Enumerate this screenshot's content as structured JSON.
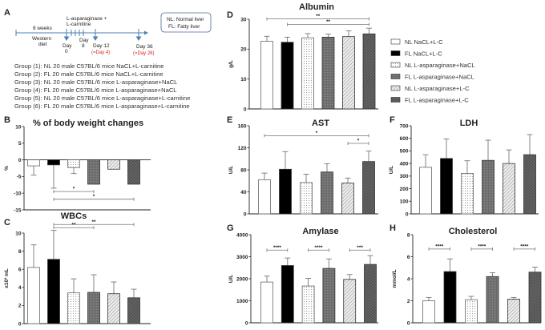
{
  "panel_a": {
    "label": "A",
    "treatment": [
      "L-asparaginase +",
      "L-carnitine"
    ],
    "diet_duration": "8 weeks",
    "diet": [
      "Western",
      "diet"
    ],
    "day0": [
      "Day",
      "0"
    ],
    "day8": [
      "Day",
      "8"
    ],
    "day12": "Day 12",
    "day12_note": "(=Day 4)",
    "day36": "Day 36",
    "day36_note": "(=Day 28)",
    "abbrev": [
      "NL: Normal liver",
      "FL: Fatty liver"
    ],
    "groups": [
      "Group (1): NL 20 male C57BL/6 mice NaCL+L-carnitine",
      "Group (2): FL 20 male C57BL/6 mice NaCL+L-carnitine",
      "Group (3): NL 20 male C57BL/6 mice L-asparaginase+NaCL",
      "Group (4): FL 20 male C57BL/6 mice L-asparaginase+NaCL",
      "Group (5): NL 20 male C57BL/6 mice L-asparaginase+L-carnitine",
      "Group (6): FL 20 male C57BL/6 mice L-asparaginase+L-carnitine"
    ]
  },
  "legend": [
    "NL NaCL+L-C",
    "FL NaCL+L-C",
    "NL L-asparaginase+NaCL",
    "FL L-asparaginase+NaCL",
    "NL L-asparaginase+L-C",
    "FL L-asparaginase+L-C"
  ],
  "chart_data": [
    {
      "id": "B",
      "label": "B",
      "type": "bar",
      "title": "% of  body weight changes",
      "ylabel": "%",
      "ylim": [
        -15,
        10
      ],
      "ticks": [
        10,
        5,
        0,
        -5,
        -10,
        -15
      ],
      "values": [
        -1.8,
        -1.5,
        -2.3,
        -7.3,
        -2.8,
        -7.3
      ],
      "errors": [
        2.8,
        7.0,
        1.8,
        0,
        0,
        0
      ],
      "significance": [
        {
          "from": 2,
          "to": 4,
          "y": -9.5,
          "label": "*"
        },
        {
          "from": 2,
          "to": 6,
          "y": -11.8,
          "label": "*"
        }
      ]
    },
    {
      "id": "C",
      "label": "C",
      "type": "bar",
      "title": "WBCs",
      "ylabel": "x10³ mL",
      "ylim": [
        0,
        10
      ],
      "ticks": [
        0,
        2,
        4,
        6,
        8,
        10
      ],
      "values": [
        6.2,
        7.1,
        3.4,
        3.45,
        3.3,
        2.85
      ],
      "errors": [
        2.5,
        3.2,
        1.55,
        1.95,
        1.3,
        0.95
      ],
      "significance": [
        {
          "from": 2,
          "to": 4,
          "y": 10.6,
          "label": "**"
        },
        {
          "from": 2,
          "to": 6,
          "y": 10.95,
          "label": "**"
        }
      ]
    },
    {
      "id": "D",
      "label": "D",
      "type": "bar",
      "title": "Albumin",
      "ylabel": "g/L",
      "ylim": [
        0,
        30
      ],
      "ticks": [
        0,
        10,
        20,
        30
      ],
      "values": [
        22.6,
        22.3,
        23.8,
        24.0,
        24.2,
        25.1
      ],
      "errors": [
        1.7,
        1.7,
        1.4,
        1.0,
        1.9,
        1.9
      ],
      "significance": [
        {
          "from": 1,
          "to": 6,
          "y": 30.1,
          "label": "**"
        },
        {
          "from": 2,
          "to": 6,
          "y": 28.3,
          "label": "**"
        }
      ]
    },
    {
      "id": "E",
      "label": "E",
      "type": "bar",
      "title": "AST",
      "ylabel": "U/L",
      "ylim": [
        0,
        160
      ],
      "ticks": [
        0,
        40,
        80,
        120,
        160
      ],
      "values": [
        62,
        81,
        57,
        76,
        56,
        95
      ],
      "errors": [
        12,
        32,
        15,
        15,
        9,
        19
      ],
      "significance": [
        {
          "from": 1,
          "to": 6,
          "y": 142,
          "label": "*"
        },
        {
          "from": 5,
          "to": 6,
          "y": 128,
          "label": "*"
        }
      ]
    },
    {
      "id": "F",
      "label": "F",
      "type": "bar",
      "title": "LDH",
      "ylabel": "U/L",
      "ylim": [
        0,
        700
      ],
      "ticks": [
        0,
        100,
        200,
        300,
        400,
        500,
        600,
        700
      ],
      "values": [
        370,
        440,
        322,
        425,
        400,
        470
      ],
      "errors": [
        100,
        155,
        100,
        160,
        108,
        160
      ],
      "significance": []
    },
    {
      "id": "G",
      "label": "G",
      "type": "bar",
      "title": "Amylase",
      "ylabel": "U/L",
      "ylim": [
        0,
        4000
      ],
      "ticks": [
        0,
        1000,
        2000,
        3000,
        4000
      ],
      "values": [
        1850,
        2600,
        1670,
        2470,
        1970,
        2650
      ],
      "errors": [
        270,
        340,
        350,
        430,
        220,
        400
      ],
      "significance": [
        {
          "from": 1,
          "to": 2,
          "y": 3300,
          "label": "****"
        },
        {
          "from": 3,
          "to": 4,
          "y": 3300,
          "label": "****"
        },
        {
          "from": 5,
          "to": 6,
          "y": 3300,
          "label": "***"
        }
      ]
    },
    {
      "id": "H",
      "label": "H",
      "type": "bar",
      "title": "Cholesterol",
      "ylabel": "mmol/L",
      "ylim": [
        0,
        8
      ],
      "ticks": [
        0,
        2,
        4,
        6,
        8
      ],
      "values": [
        2.0,
        4.65,
        2.1,
        4.2,
        2.15,
        4.6
      ],
      "errors": [
        0.3,
        1.15,
        0.3,
        0.35,
        0.15,
        0.45
      ],
      "significance": [
        {
          "from": 1,
          "to": 2,
          "y": 6.7,
          "label": "****"
        },
        {
          "from": 3,
          "to": 4,
          "y": 6.7,
          "label": "****"
        },
        {
          "from": 5,
          "to": 6,
          "y": 6.7,
          "label": "****"
        }
      ]
    }
  ],
  "colors": {
    "axis": "#222",
    "error": "#777",
    "timeline": "#4a7fb5",
    "note": "#d22"
  }
}
